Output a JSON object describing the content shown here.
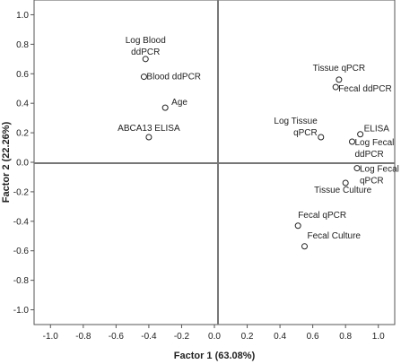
{
  "chart_data": {
    "type": "scatter",
    "xlabel": "Factor 1 (63.08%)",
    "ylabel": "Factor 2 (22.26%)",
    "xlim": [
      -1.1,
      1.1
    ],
    "ylim": [
      -1.1,
      1.1
    ],
    "x_ticks": [
      "-1.0",
      "-0.8",
      "-0.6",
      "-0.4",
      "-0.2",
      "0.0",
      "0.2",
      "0.4",
      "0.6",
      "0.8",
      "1.0"
    ],
    "y_ticks": [
      "1.0",
      "0.8",
      "0.6",
      "0.4",
      "0.2",
      "0.0",
      "-0.2",
      "-0.4",
      "-0.6",
      "-0.8",
      "-1.0"
    ],
    "grid": false,
    "points": [
      {
        "label_lines": [
          "Log Blood",
          "ddPCR"
        ],
        "x": -0.42,
        "y": 0.7
      },
      {
        "label_lines": [
          "Blood ddPCR"
        ],
        "x": -0.43,
        "y": 0.58
      },
      {
        "label_lines": [
          "Age"
        ],
        "x": -0.3,
        "y": 0.37
      },
      {
        "label_lines": [
          "ABCA13 ELISA"
        ],
        "x": -0.4,
        "y": 0.17
      },
      {
        "label_lines": [
          "Tissue qPCR"
        ],
        "x": 0.76,
        "y": 0.56
      },
      {
        "label_lines": [
          "Fecal ddPCR"
        ],
        "x": 0.74,
        "y": 0.51
      },
      {
        "label_lines": [
          "Log Tissue",
          "qPCR"
        ],
        "x": 0.65,
        "y": 0.17
      },
      {
        "label_lines": [
          "ELISA"
        ],
        "x": 0.89,
        "y": 0.19
      },
      {
        "label_lines": [
          "Log Fecal",
          "ddPCR"
        ],
        "x": 0.84,
        "y": 0.14
      },
      {
        "label_lines": [
          "Log Fecal",
          "qPCR"
        ],
        "x": 0.87,
        "y": -0.04
      },
      {
        "label_lines": [
          "Tissue Culture"
        ],
        "x": 0.8,
        "y": -0.14
      },
      {
        "label_lines": [
          "Fecal qPCR"
        ],
        "x": 0.51,
        "y": -0.43
      },
      {
        "label_lines": [
          "Fecal Culture"
        ],
        "x": 0.55,
        "y": -0.57
      }
    ]
  }
}
